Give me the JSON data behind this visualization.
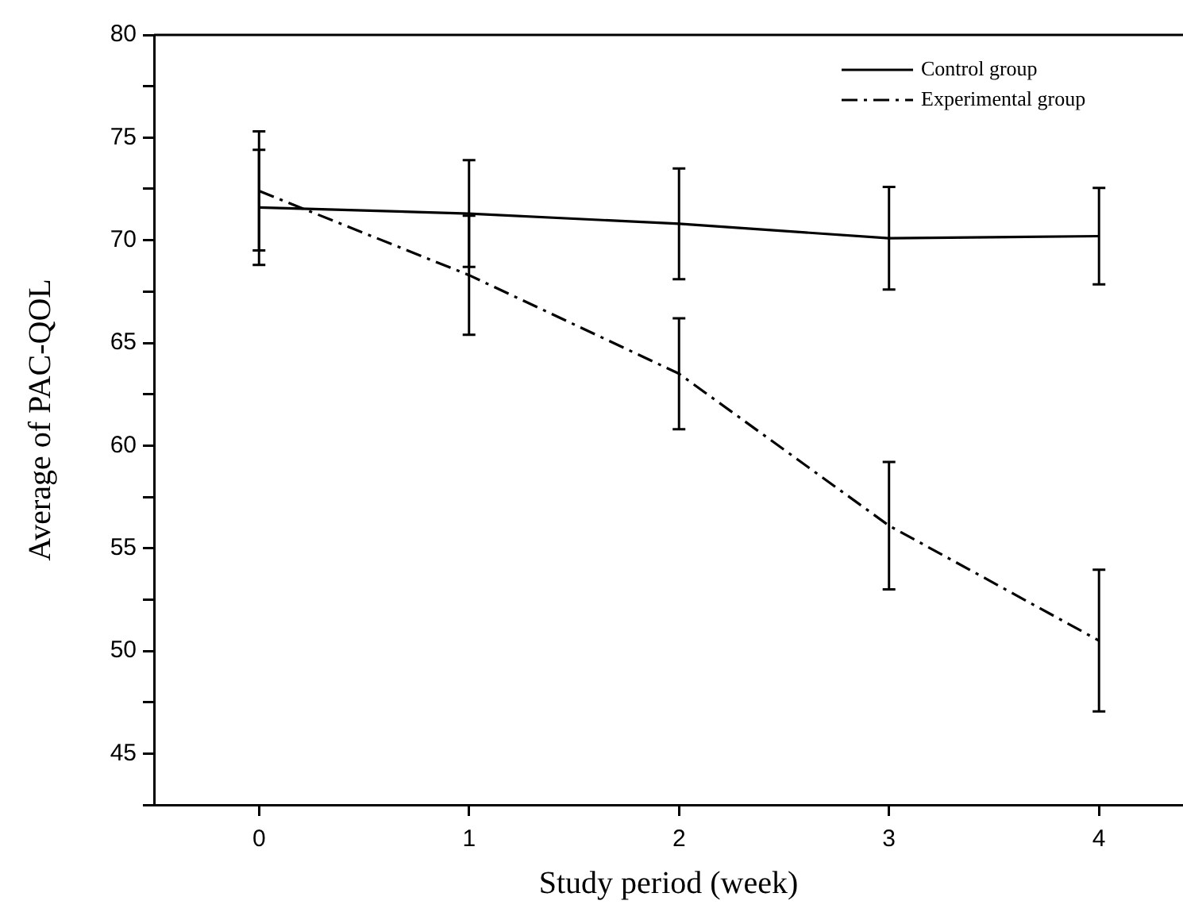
{
  "chart_data": {
    "type": "line",
    "xlabel": "Study period (week)",
    "ylabel": "Average of PAC-QOL",
    "x": [
      0,
      1,
      2,
      3,
      4
    ],
    "series": [
      {
        "name": "Control group",
        "color": "#000000",
        "line_style": "solid",
        "values": [
          71.6,
          71.3,
          70.8,
          70.1,
          70.2
        ],
        "errors": [
          2.8,
          2.6,
          2.7,
          2.5,
          2.35
        ]
      },
      {
        "name": "Experimental group",
        "color": "#000000",
        "line_style": "dashdot",
        "values": [
          72.4,
          68.3,
          63.5,
          56.1,
          50.5
        ],
        "errors": [
          2.9,
          2.9,
          2.7,
          3.1,
          3.45
        ]
      }
    ],
    "xlim": [
      -0.5,
      4.4
    ],
    "xticks": [
      0,
      1,
      2,
      3,
      4
    ],
    "ylim": [
      42.5,
      80
    ],
    "yticks": [
      {
        "value": 42.5,
        "label": null
      },
      45,
      {
        "value": 47.5,
        "label": null
      },
      50,
      {
        "value": 52.5,
        "label": null
      },
      55,
      {
        "value": 57.5,
        "label": null
      },
      60,
      {
        "value": 62.5,
        "label": null
      },
      65,
      {
        "value": 67.5,
        "label": null
      },
      70,
      {
        "value": 72.5,
        "label": null
      },
      75,
      {
        "value": 77.5,
        "label": null
      },
      80
    ],
    "grid": false,
    "legend": "top right",
    "marker": "none"
  }
}
